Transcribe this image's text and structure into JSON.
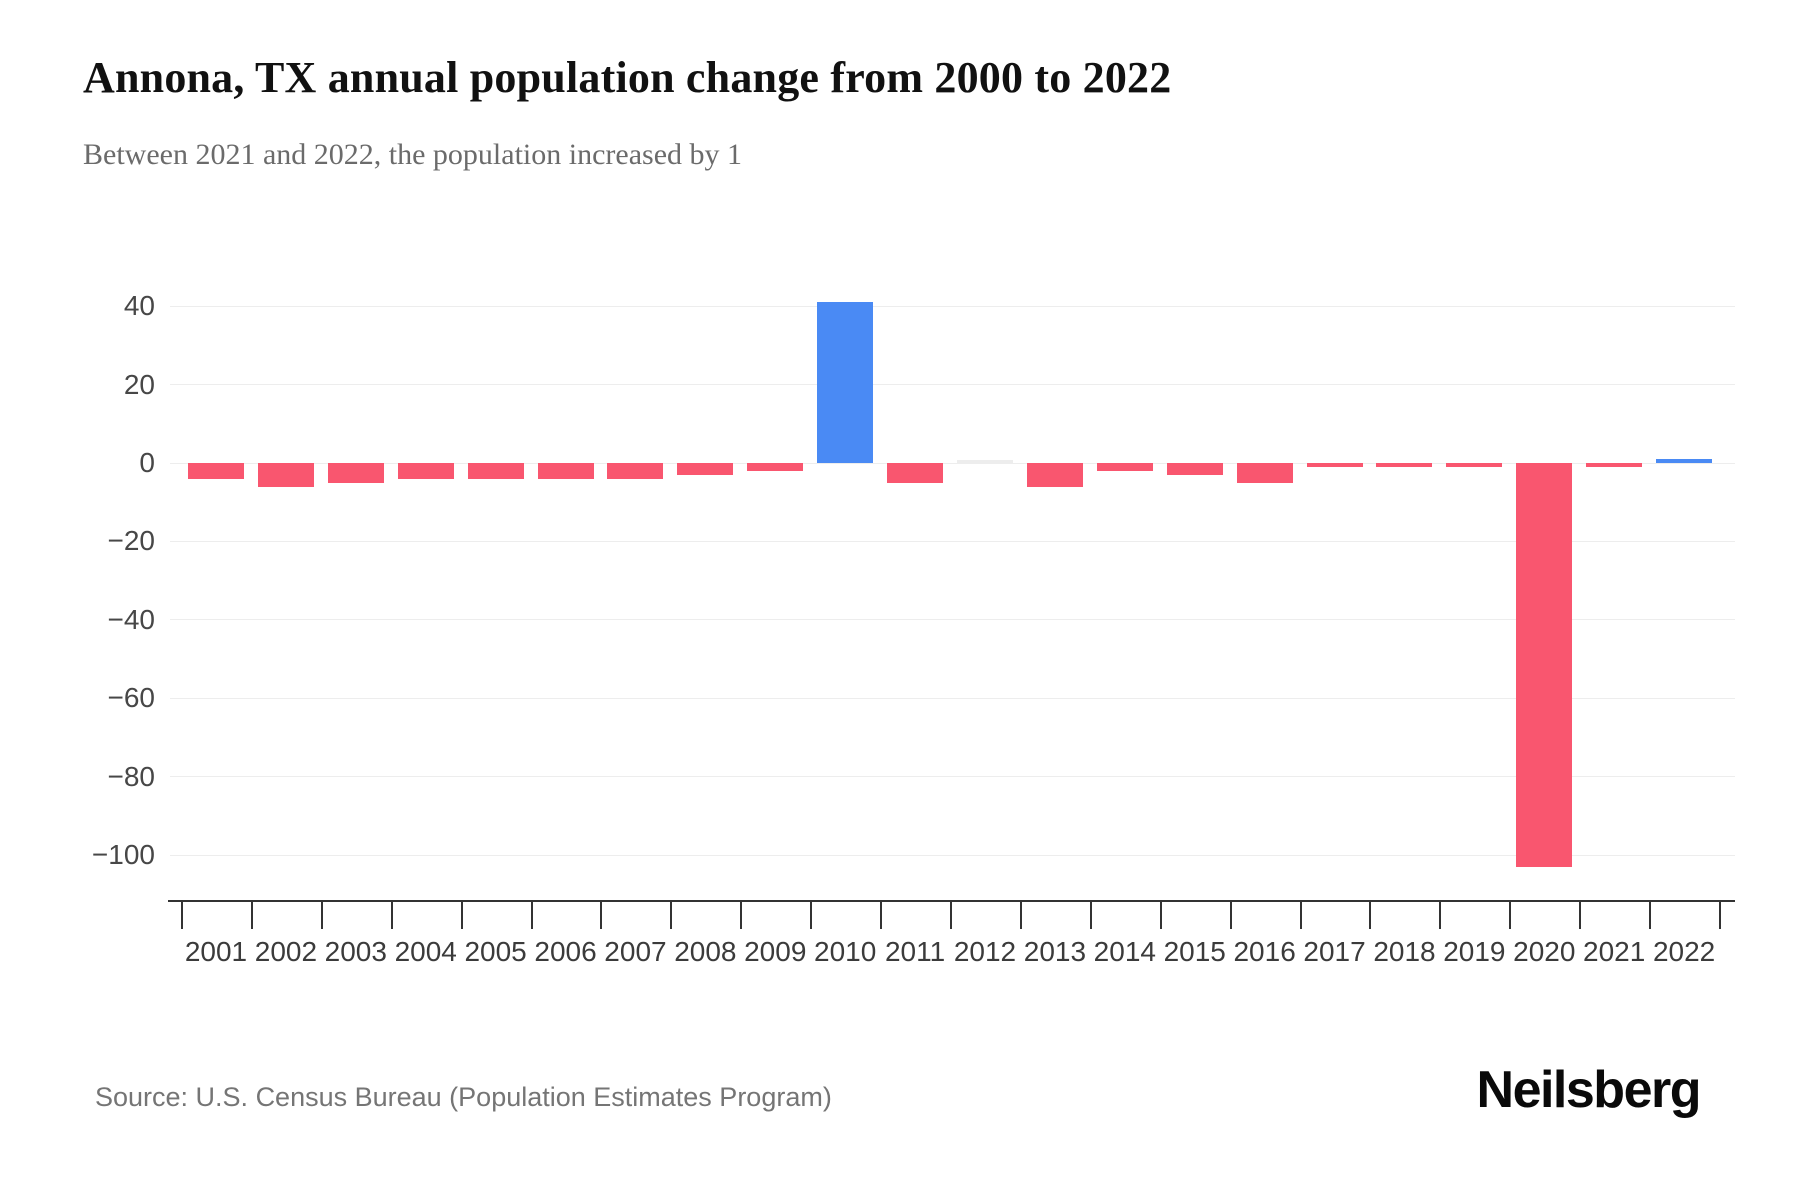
{
  "header": {
    "title": "Annona, TX annual population change from 2000 to 2022",
    "subtitle": "Between 2021 and 2022, the population increased by 1"
  },
  "footer": {
    "source": "Source: U.S. Census Bureau (Population Estimates Program)",
    "brand": "Neilsberg"
  },
  "chart_data": {
    "type": "bar",
    "title": "Annona, TX annual population change from 2000 to 2022",
    "categories": [
      "2001",
      "2002",
      "2003",
      "2004",
      "2005",
      "2006",
      "2007",
      "2008",
      "2009",
      "2010",
      "2011",
      "2012",
      "2013",
      "2014",
      "2015",
      "2016",
      "2017",
      "2018",
      "2019",
      "2020",
      "2021",
      "2022"
    ],
    "values": [
      -4,
      -6,
      -5,
      -4,
      -4,
      -4,
      -4,
      -3,
      -2,
      41,
      -5,
      0,
      -6,
      -2,
      -3,
      -5,
      -1,
      -1,
      -1,
      -103,
      -1,
      1
    ],
    "xlabel": "",
    "ylabel": "",
    "yticks": [
      40,
      20,
      0,
      -20,
      -40,
      -60,
      -80,
      -100
    ],
    "ylim": [
      -110,
      45
    ],
    "grid": true,
    "legend": "none",
    "colors": {
      "positive": "#4a8af4",
      "negative": "#f9566f",
      "zero": "#ededed"
    }
  }
}
